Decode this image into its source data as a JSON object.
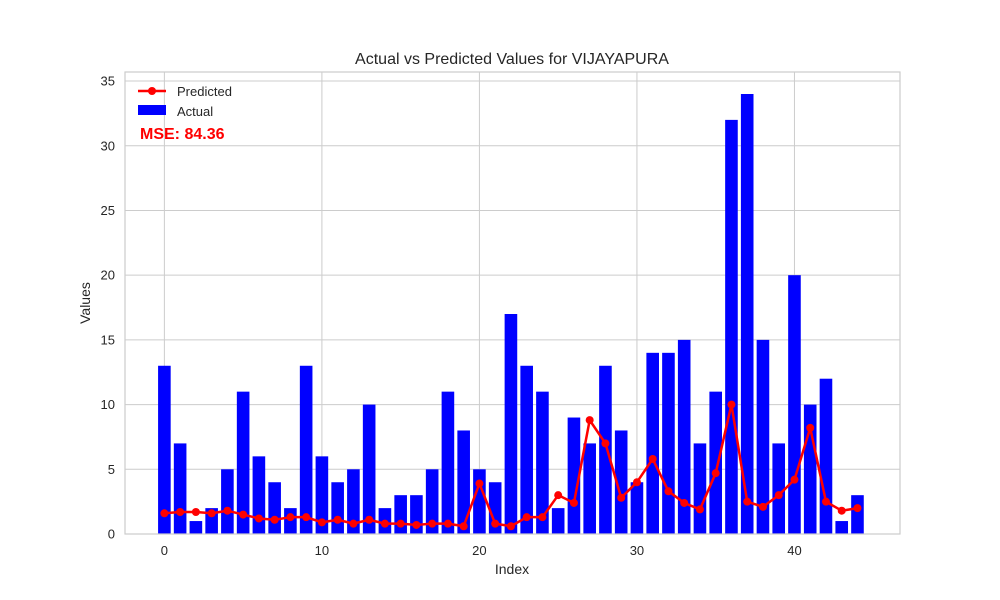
{
  "chart_data": {
    "type": "bar",
    "title": "Actual vs Predicted Values for VIJAYAPURA",
    "xlabel": "Index",
    "ylabel": "Values",
    "xlim": [
      -2.5,
      46.7
    ],
    "ylim": [
      0,
      35.7
    ],
    "xticks": [
      0,
      10,
      20,
      30,
      40
    ],
    "yticks": [
      0,
      5,
      10,
      15,
      20,
      25,
      30,
      35
    ],
    "grid": true,
    "legend_position": "top-left",
    "annotation": "MSE: 84.36",
    "series": [
      {
        "name": "Actual",
        "type": "bar",
        "color": "#0000ff",
        "values": [
          13,
          7,
          1,
          2,
          5,
          11,
          6,
          4,
          2,
          13,
          6,
          4,
          5,
          10,
          2,
          3,
          3,
          5,
          11,
          8,
          5,
          4,
          17,
          13,
          11,
          2,
          9,
          7,
          13,
          8,
          4,
          14,
          14,
          15,
          7,
          11,
          32,
          34,
          15,
          7,
          20,
          10,
          12,
          1,
          3
        ]
      },
      {
        "name": "Predicted",
        "type": "line",
        "color": "#ff0000",
        "values": [
          1.6,
          1.7,
          1.7,
          1.6,
          1.8,
          1.5,
          1.2,
          1.1,
          1.3,
          1.3,
          0.9,
          1.1,
          0.8,
          1.1,
          0.8,
          0.8,
          0.7,
          0.8,
          0.8,
          0.6,
          3.9,
          0.8,
          0.6,
          1.3,
          1.3,
          3.0,
          2.4,
          8.8,
          7.0,
          2.8,
          4.0,
          5.8,
          3.3,
          2.4,
          1.9,
          4.7,
          10.0,
          2.5,
          2.1,
          3.0,
          4.2,
          8.2,
          2.5,
          1.8,
          2.0
        ]
      }
    ]
  }
}
